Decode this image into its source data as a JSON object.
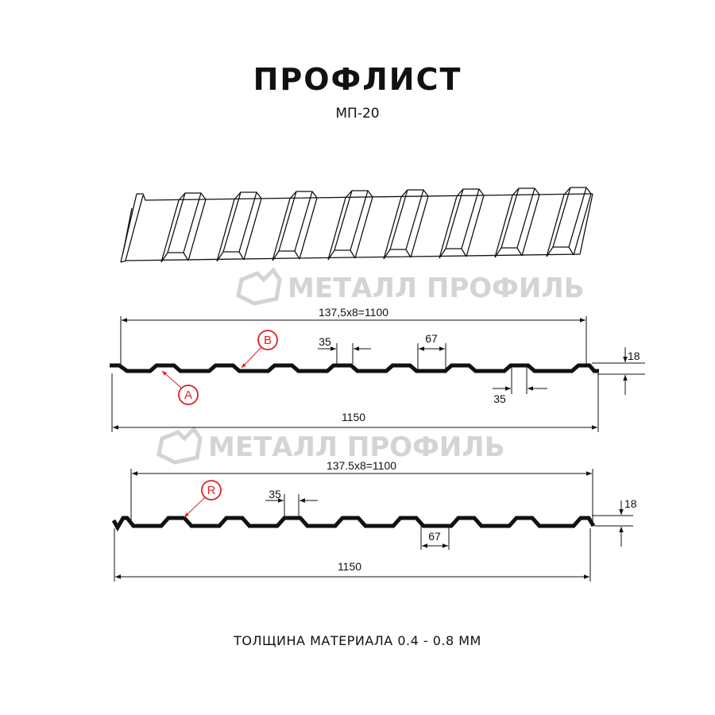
{
  "header": {
    "title": "ПРОФЛИСТ",
    "subtitle": "МП-20"
  },
  "watermark": {
    "text": "МЕТАЛЛ ПРОФИЛЬ",
    "color": "#d4d4d4"
  },
  "profile_a": {
    "useful_width": "137,5x8=1100",
    "total_width": "1150",
    "height": "18",
    "ridge_top": "35",
    "ridge_top_bottom": "35",
    "valley": "67",
    "callouts": [
      "A",
      "B"
    ]
  },
  "profile_b": {
    "useful_width": "137.5x8=1100",
    "total_width": "1150",
    "height": "18",
    "ridge_top": "35",
    "valley": "67",
    "callouts": [
      "R"
    ]
  },
  "colors": {
    "callout": "#e02020",
    "line": "#111111"
  },
  "footer": {
    "thickness": "ТОЛЩИНА МАТЕРИАЛА 0.4 - 0.8 ММ"
  }
}
